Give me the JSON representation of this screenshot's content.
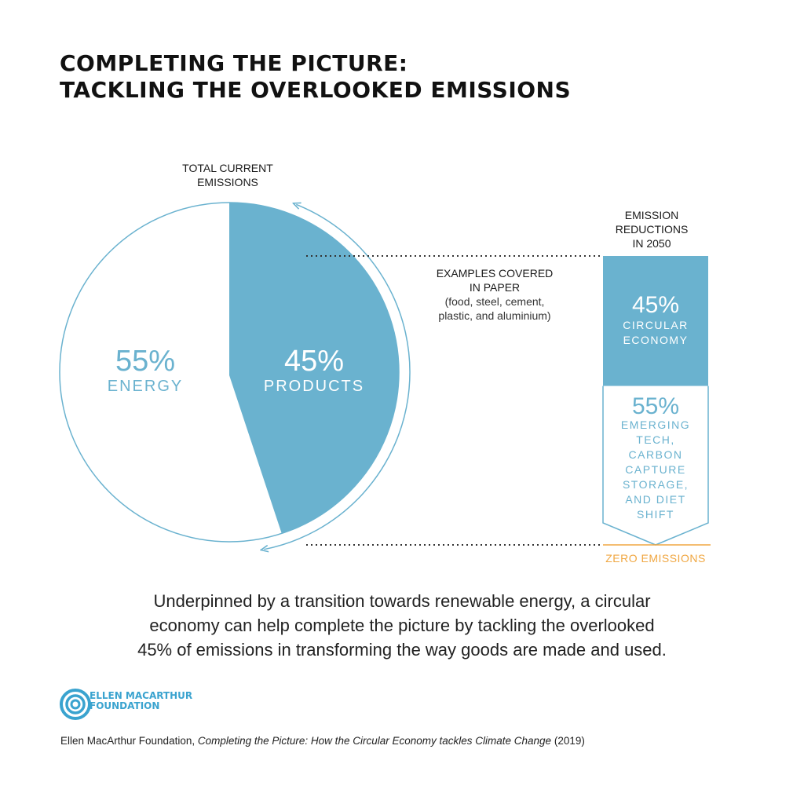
{
  "title": {
    "line1": "COMPLETING THE PICTURE:",
    "line2": "TACKLING THE OVERLOOKED EMISSIONS"
  },
  "colors": {
    "accent": "#6ab2cf",
    "text": "#1a1a1a",
    "zero_line": "#f0a742",
    "white": "#ffffff"
  },
  "pie_label": {
    "line1": "TOTAL CURRENT",
    "line2": "EMISSIONS"
  },
  "examples": {
    "heading1": "EXAMPLES COVERED",
    "heading2": "IN PAPER",
    "detail1": "(food, steel, cement,",
    "detail2": "plastic, and aluminium)"
  },
  "bar_label": {
    "line1": "EMISSION",
    "line2": "REDUCTIONS",
    "line3": "IN 2050"
  },
  "zero_label": "ZERO EMISSIONS",
  "caption": {
    "line1": "Underpinned by a transition towards renewable energy, a circular",
    "line2": "economy can help complete the picture by tackling the overlooked",
    "line3": "45% of emissions in transforming the way goods are made and used."
  },
  "logo": {
    "line1": "ELLEN MACARTHUR",
    "line2": "FOUNDATION",
    "icon": "concentric-rings-icon"
  },
  "source": {
    "author": "Ellen MacArthur Foundation,",
    "title": "Completing the Picture: How the Circular Economy tackles Climate Change",
    "year": "(2019)"
  },
  "chart_data": [
    {
      "type": "pie",
      "title": "TOTAL CURRENT EMISSIONS",
      "slices": [
        {
          "pct_label": "55%",
          "name": "ENERGY",
          "value": 55,
          "fill": "#ffffff",
          "text_color": "#6ab2cf"
        },
        {
          "pct_label": "45%",
          "name": "PRODUCTS",
          "value": 45,
          "fill": "#6ab2cf",
          "text_color": "#ffffff"
        }
      ]
    },
    {
      "type": "bar",
      "orientation": "stacked-vertical",
      "title": "EMISSION REDUCTIONS IN 2050",
      "segments": [
        {
          "pct_label": "45%",
          "value": 45,
          "name_lines": [
            "CIRCULAR",
            "ECONOMY"
          ],
          "fill": "#6ab2cf",
          "text_color": "#ffffff"
        },
        {
          "pct_label": "55%",
          "value": 55,
          "name_lines": [
            "EMERGING",
            "TECH,",
            "CARBON",
            "CAPTURE",
            "STORAGE,",
            "AND DIET",
            "SHIFT"
          ],
          "fill": "#ffffff",
          "text_color": "#6ab2cf"
        }
      ],
      "baseline": "ZERO EMISSIONS"
    }
  ]
}
